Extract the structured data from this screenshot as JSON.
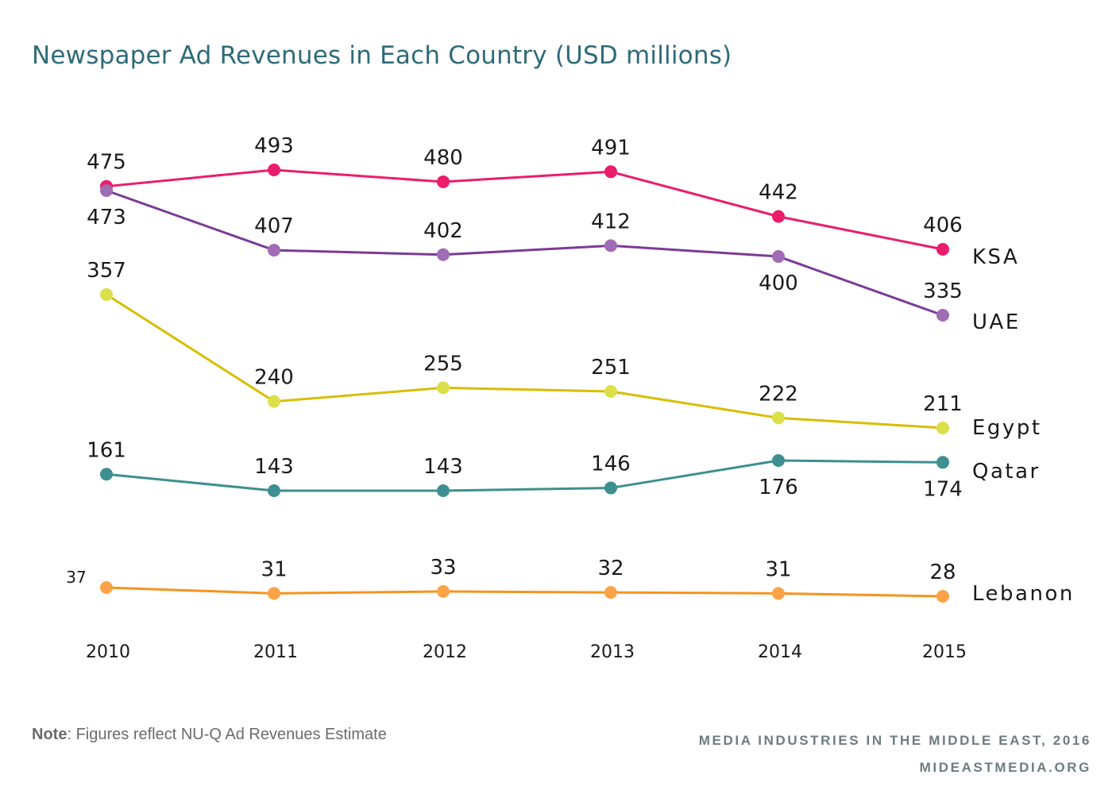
{
  "chart_data": {
    "type": "line",
    "title": "Newspaper Ad Revenues in Each Country (USD millions)",
    "x": [
      "2010",
      "2011",
      "2012",
      "2013",
      "2014",
      "2015"
    ],
    "grid": false,
    "legend": "end-of-line labels",
    "series": [
      {
        "name": "KSA",
        "color": "#ec1c6c",
        "values": [
          475,
          493,
          480,
          491,
          442,
          406
        ]
      },
      {
        "name": "UAE",
        "color": "#7b3b96",
        "marker": "#a06cb4",
        "values": [
          473,
          407,
          402,
          412,
          400,
          335
        ]
      },
      {
        "name": "Egypt",
        "color": "#d8be00",
        "marker": "#dbe04a",
        "values": [
          357,
          240,
          255,
          251,
          222,
          211
        ]
      },
      {
        "name": "Qatar",
        "color": "#3d8f90",
        "values": [
          161,
          143,
          143,
          146,
          176,
          174
        ]
      },
      {
        "name": "Lebanon",
        "color": "#f7931e",
        "marker": "#fba348",
        "values": [
          37,
          31,
          33,
          32,
          31,
          28
        ]
      }
    ]
  },
  "note": {
    "label": "Note",
    "text": ": Figures reflect NU-Q Ad Revenues Estimate"
  },
  "credit": {
    "line1": "MEDIA INDUSTRIES IN THE MIDDLE EAST, 2016",
    "line2": "MIDEASTMEDIA.ORG"
  }
}
